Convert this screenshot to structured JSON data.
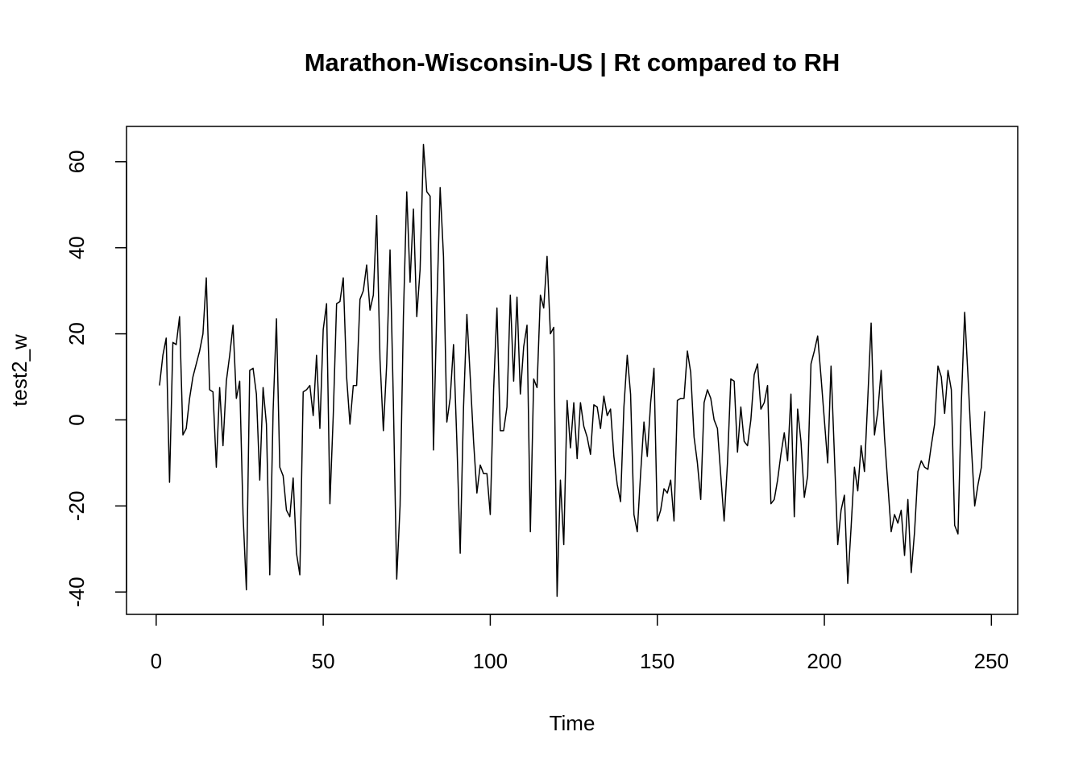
{
  "chart_data": {
    "type": "line",
    "title": "Marathon-Wisconsin-US | Rt compared to RH",
    "xlabel": "Time",
    "ylabel": "test2_w",
    "color": "#000000",
    "xlim": [
      -8.88,
      257.88
    ],
    "ylim": [
      -45.2,
      68.2
    ],
    "xticks": [
      0,
      50,
      100,
      150,
      200,
      250
    ],
    "yticks": [
      -40,
      -20,
      0,
      20,
      40,
      60
    ],
    "series": [
      {
        "name": "test2_w",
        "color": "#000000",
        "values": [
          8,
          15,
          19,
          -14.5,
          18,
          17.5,
          24,
          -3.5,
          -2,
          5,
          10,
          13,
          16,
          20,
          33,
          7,
          6.5,
          -11,
          7.5,
          -6,
          9,
          15,
          22,
          5,
          9,
          -22,
          -39.5,
          11.5,
          12,
          6,
          -14,
          7.5,
          -1,
          -36,
          2,
          23.5,
          -11,
          -13,
          -21,
          -22.5,
          -13.5,
          -31,
          -36,
          6.5,
          7,
          8,
          1,
          15,
          -2,
          21,
          27,
          -19.5,
          1,
          27,
          27.5,
          33,
          10,
          -1,
          8,
          8,
          28,
          30,
          36,
          25.5,
          29,
          47.5,
          14,
          -2.5,
          13,
          39.5,
          4,
          -37,
          -20,
          24,
          53,
          32,
          49,
          24,
          35,
          64,
          53,
          52,
          -7,
          26,
          54,
          38,
          -0.5,
          5,
          17.5,
          -5,
          -31,
          3,
          24.5,
          10,
          -5,
          -17,
          -10.5,
          -12.5,
          -12.5,
          -22,
          7,
          26,
          -2.5,
          -2.5,
          3,
          29,
          9,
          28.5,
          6,
          17,
          22,
          -26,
          9.5,
          7.5,
          29,
          26,
          38,
          20,
          21.5,
          -41,
          -14,
          -29,
          4.5,
          -6.5,
          4,
          -9,
          4,
          -1.5,
          -4,
          -8,
          3.5,
          3,
          -2,
          5.5,
          1,
          2.5,
          -8.5,
          -15,
          -19,
          3,
          15,
          6,
          -22,
          -26,
          -12.5,
          -0.5,
          -8.5,
          4,
          12,
          -23.5,
          -21,
          -16,
          -17,
          -14,
          -23.5,
          4.5,
          5,
          5,
          16,
          11,
          -4,
          -10,
          -18.5,
          4,
          7,
          5,
          0,
          -2,
          -13,
          -23.5,
          -10,
          9.5,
          9,
          -7.5,
          3,
          -5,
          -6,
          0,
          10.5,
          13,
          2.5,
          4,
          8,
          -19.5,
          -18.5,
          -14,
          -8,
          -3,
          -9.5,
          6,
          -22.5,
          2.5,
          -5,
          -18,
          -13,
          13,
          16,
          19.5,
          10,
          0,
          -10,
          12.5,
          -8,
          -29,
          -21,
          -17.5,
          -38,
          -25,
          -11,
          -16.5,
          -6,
          -12,
          5,
          22.5,
          -3.5,
          2,
          11.5,
          -4,
          -15,
          -26,
          -22,
          -24,
          -21,
          -31.5,
          -18.5,
          -35.5,
          -26,
          -12,
          -9.5,
          -11,
          -11.5,
          -6,
          -1,
          12.5,
          10,
          1.5,
          11.5,
          7,
          -24.5,
          -26.5,
          4,
          25,
          10,
          -6,
          -20,
          -15,
          -11,
          2
        ]
      }
    ]
  }
}
